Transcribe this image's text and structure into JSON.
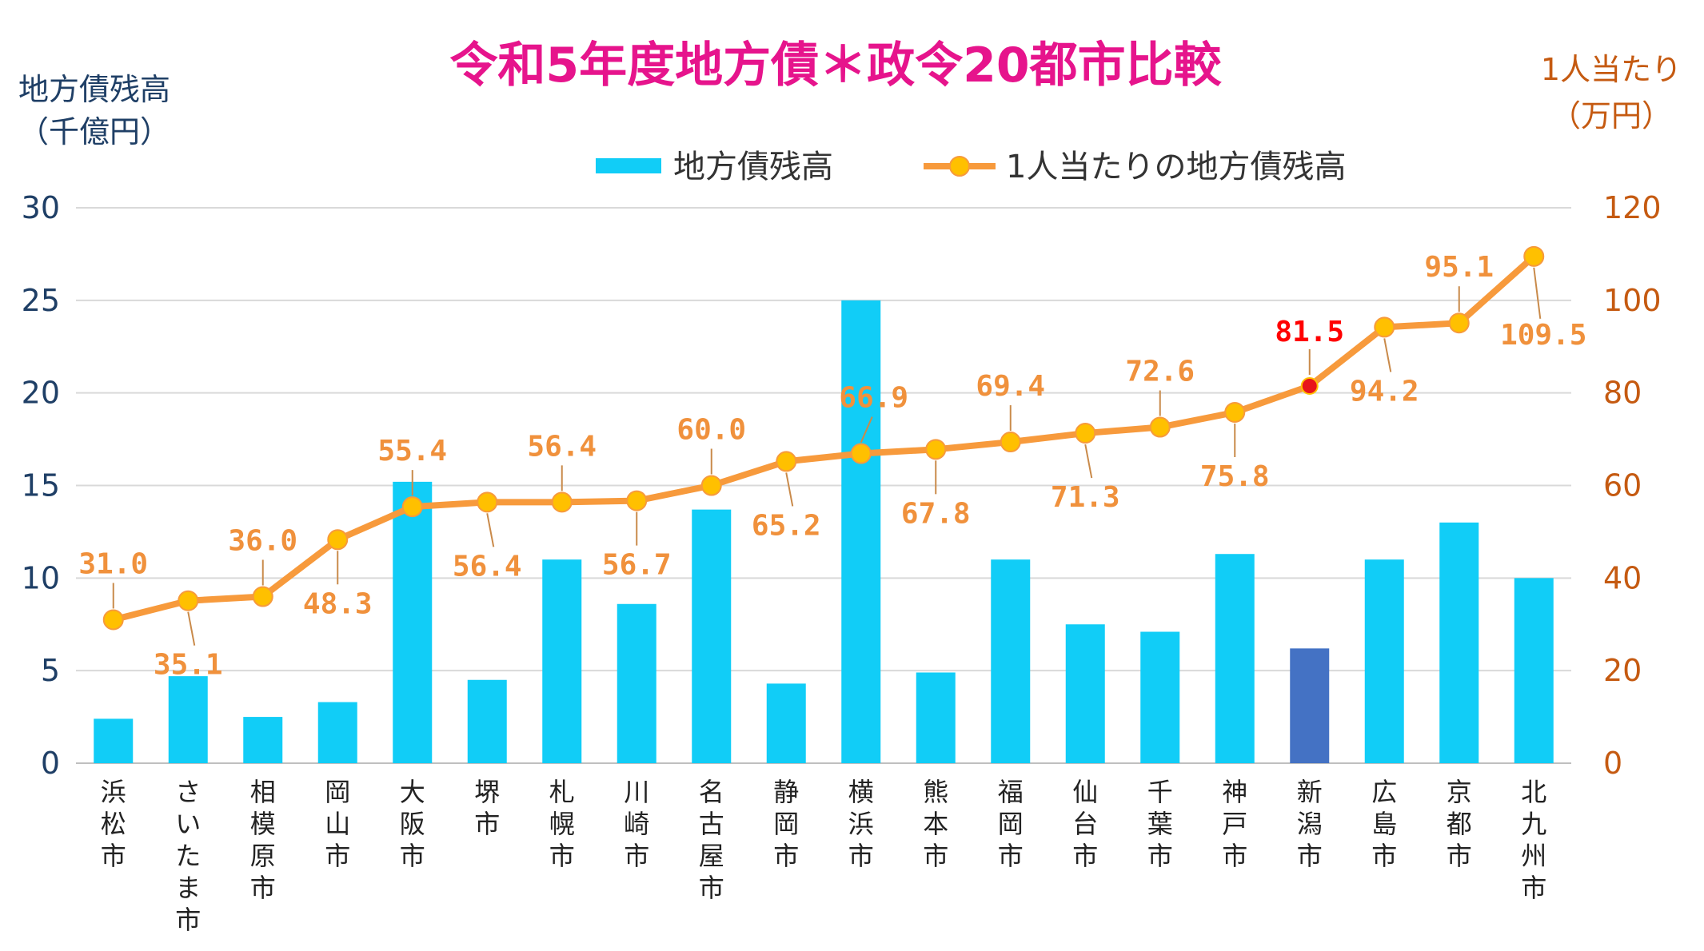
{
  "chart_data": {
    "type": "bar",
    "title": "令和5年度地方債＊政令20都市比較",
    "categories": [
      "浜松市",
      "さいたま市",
      "相模原市",
      "岡山市",
      "大阪市",
      "堺市",
      "札幌市",
      "川崎市",
      "名古屋市",
      "静岡市",
      "横浜市",
      "熊本市",
      "福岡市",
      "仙台市",
      "千葉市",
      "神戸市",
      "新潟市",
      "広島市",
      "京都市",
      "北九州市"
    ],
    "y_left": {
      "label_lines": [
        "地方債残高",
        "（千億円）"
      ],
      "ylim": [
        0,
        30
      ],
      "ticks": [
        "0",
        "5",
        "10",
        "15",
        "20",
        "25",
        "30"
      ]
    },
    "y_right": {
      "label_lines": [
        "1人当たり",
        "（万円）"
      ],
      "ylim": [
        0,
        120
      ],
      "ticks": [
        "0",
        "20",
        "40",
        "60",
        "80",
        "100",
        "120"
      ]
    },
    "series": [
      {
        "name": "地方債残高",
        "type": "bar",
        "axis": "left",
        "color": "#11CDF7",
        "highlight_color": "#4472C4",
        "highlight_index": 16,
        "values": [
          2.4,
          4.7,
          2.5,
          3.3,
          15.2,
          4.5,
          11.0,
          8.6,
          13.7,
          4.3,
          25.0,
          4.9,
          11.0,
          7.5,
          7.1,
          11.3,
          6.2,
          11.0,
          13.0,
          10.0
        ]
      },
      {
        "name": "1人当たりの地方債残高",
        "type": "line",
        "axis": "right",
        "color": "#F79A3C",
        "marker_color": "#FFC000",
        "highlight_marker_color": "#E8141A",
        "highlight_index": 16,
        "values": [
          31.0,
          35.1,
          36.0,
          48.3,
          55.4,
          56.4,
          56.4,
          56.7,
          60.0,
          65.2,
          66.9,
          67.8,
          69.4,
          71.3,
          72.6,
          75.8,
          81.5,
          94.2,
          95.1,
          109.5
        ],
        "labels": [
          "31.0",
          "35.1",
          "36.0",
          "48.3",
          "55.4",
          "56.4",
          "56.4",
          "56.7",
          "60.0",
          "65.2",
          "66.9",
          "67.8",
          "69.4",
          "71.3",
          "72.6",
          "75.8",
          "81.5",
          "94.2",
          "95.1",
          "109.5"
        ],
        "label_color": "#F0913C",
        "highlight_label_color": "#FF0000"
      }
    ],
    "colors": {
      "title": "#E6148C",
      "left_axis": "#1F3F66",
      "right_axis": "#C55A11",
      "grid": "#D9D9D9"
    },
    "grid": true,
    "legend_position": "top"
  }
}
